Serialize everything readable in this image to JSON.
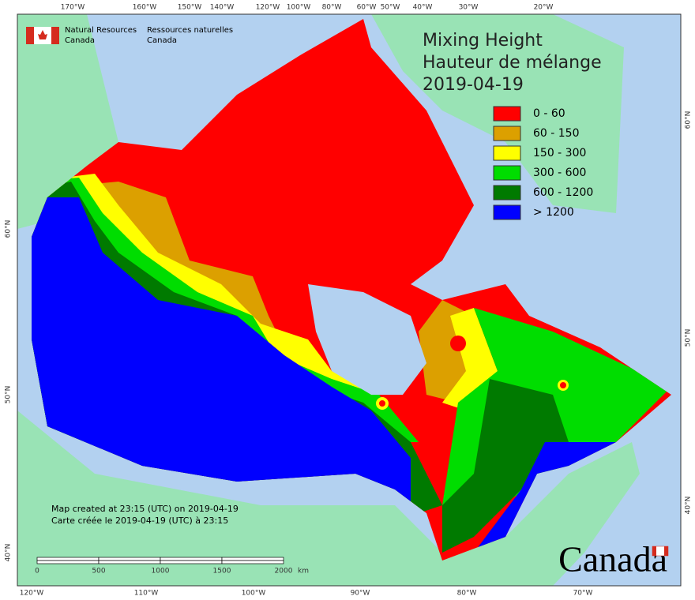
{
  "header": {
    "agency_en": [
      "Natural Resources",
      "Canada"
    ],
    "agency_fr": [
      "Ressources naturelles",
      "Canada"
    ]
  },
  "title": [
    "Mixing Height",
    "Hauteur de mélange",
    "2019-04-19"
  ],
  "legend": [
    {
      "label": "0 - 60",
      "color": "#ff0000"
    },
    {
      "label": "60 - 150",
      "color": "#dca000"
    },
    {
      "label": "150 - 300",
      "color": "#ffff00"
    },
    {
      "label": "300 - 600",
      "color": "#00dd00"
    },
    {
      "label": "600 - 1200",
      "color": "#007a00"
    },
    {
      "label": "> 1200",
      "color": "#0000ff"
    }
  ],
  "graticule": {
    "top": [
      "170°W",
      "160°W",
      "150°W",
      "140°W",
      "120°W",
      "100°W",
      "80°W",
      "60°W",
      "50°W",
      "40°W",
      "30°W",
      "20°W"
    ],
    "bottom": [
      "120°W",
      "110°W",
      "100°W",
      "90°W",
      "80°W",
      "70°W"
    ],
    "left": [
      "60°N",
      "50°N",
      "40°N"
    ],
    "right": [
      "60°N",
      "50°N",
      "40°N"
    ]
  },
  "notes": [
    "Map created at 23:15 (UTC) on 2019-04-19",
    "Carte créée le 2019-04-19 (UTC) à 23:15"
  ],
  "scale_bar": {
    "labels": [
      "0",
      "500",
      "1000",
      "1500",
      "2000"
    ],
    "unit": "km"
  },
  "wordmark": "Canada"
}
